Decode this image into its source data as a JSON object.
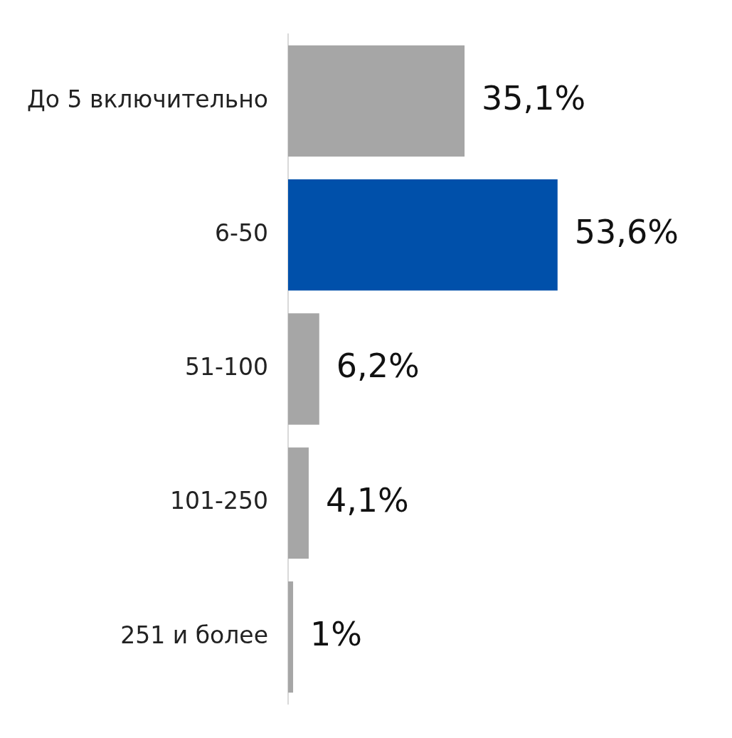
{
  "chart_data": {
    "type": "bar",
    "orientation": "horizontal",
    "categories": [
      "До 5 включительно",
      "6-50",
      "51-100",
      "101-250",
      "251 и более"
    ],
    "values": [
      35.1,
      53.6,
      6.2,
      4.1,
      1
    ],
    "colors": [
      "#a6a6a6",
      "#0050aa",
      "#a6a6a6",
      "#a6a6a6",
      "#a6a6a6"
    ],
    "value_labels": [
      "35,1%",
      "53,6%",
      "6,2%",
      "4,1%",
      "1%"
    ],
    "tick_labels": "y",
    "grid": false,
    "legend": false
  }
}
